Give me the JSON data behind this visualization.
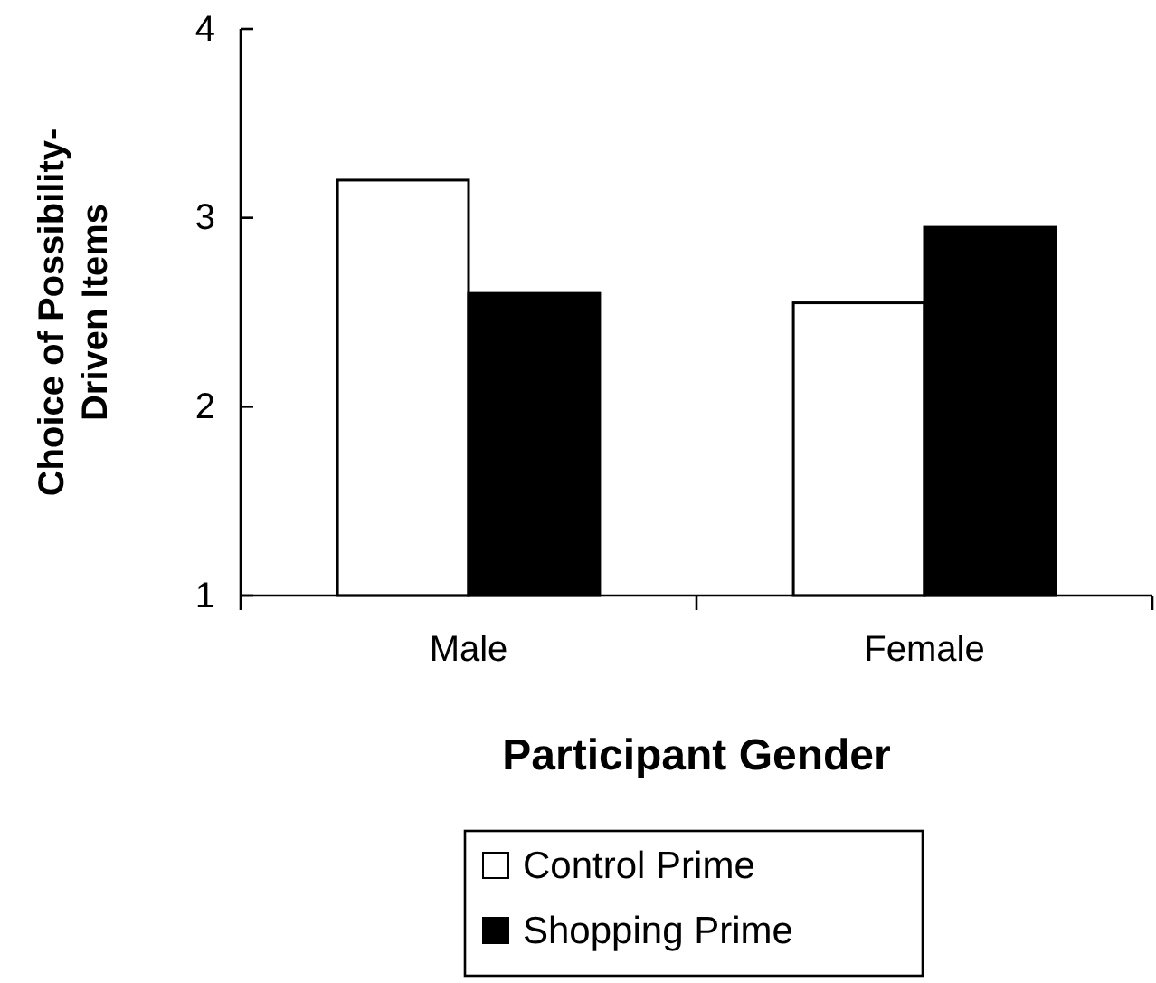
{
  "chart_data": {
    "type": "bar",
    "xlabel": "Participant Gender",
    "ylabel": "Choice of Possibility-Driven Items",
    "categories": [
      "Male",
      "Female"
    ],
    "series": [
      {
        "name": "Control Prime",
        "color": "#ffffff",
        "values": [
          3.2,
          2.55
        ]
      },
      {
        "name": "Shopping Prime",
        "color": "#000000",
        "values": [
          2.6,
          2.95
        ]
      }
    ],
    "ylim": [
      1,
      4
    ],
    "yticks": [
      1,
      2,
      3,
      4
    ],
    "legend": "bottom",
    "grid": false
  }
}
